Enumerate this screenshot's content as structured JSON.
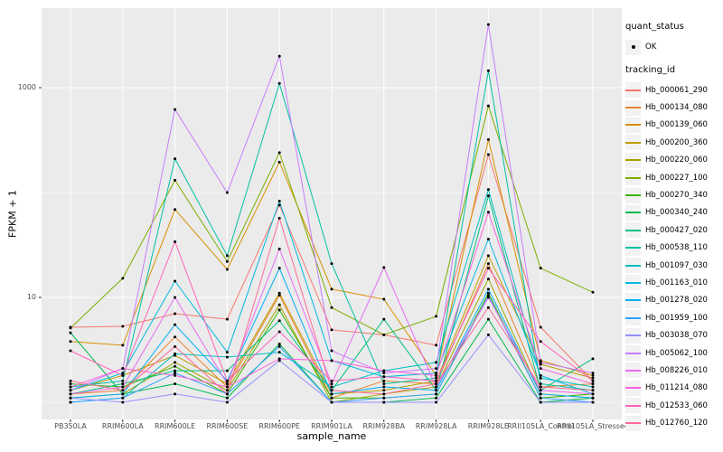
{
  "figure": {
    "y_axis_title": "FPKM + 1",
    "x_axis_title": "sample_name",
    "panel_bg": "#EBEBEB",
    "grid_color": "#FFFFFF",
    "axis_text_color": "#4D4D4D",
    "point_color": "#000000"
  },
  "legend": {
    "quant_status_title": "quant_status",
    "quant_status_items": [
      {
        "label": "OK",
        "marker": "point"
      }
    ],
    "tracking_id_title": "tracking_id"
  },
  "chart_data": {
    "type": "line",
    "title": "",
    "xlabel": "sample_name",
    "ylabel": "FPKM + 1",
    "y_scale": "log10",
    "ylim": [
      1,
      5000
    ],
    "grid": true,
    "legend_position": "right",
    "y_ticks": [
      {
        "label": "10",
        "value": 10
      },
      {
        "label": "1000",
        "value": 1000
      }
    ],
    "y_minor_values": [
      1,
      100
    ],
    "categories": [
      "PB350LA",
      "RRIM600LA",
      "RRIM600LE",
      "RRIM600SE",
      "RRIM600PE",
      "RRIM901LA",
      "RRIM928BA",
      "RRIM928LA",
      "RRIM928LE",
      "RRII105LA_Control",
      "RRII105LA_Stressed"
    ],
    "series": [
      {
        "name": "Hb_000061_290",
        "color": "#F8766D",
        "values": [
          5.2,
          5.3,
          7,
          6.2,
          76,
          4.9,
          4.4,
          3.5,
          230,
          5.2,
          1.6
        ]
      },
      {
        "name": "Hb_000134_080",
        "color": "#EA8331",
        "values": [
          1.2,
          1.3,
          4.2,
          1.4,
          10.5,
          1.1,
          1.6,
          1.5,
          21,
          1.4,
          1.5
        ]
      },
      {
        "name": "Hb_000139_060",
        "color": "#D89000",
        "values": [
          3.8,
          3.5,
          69,
          18.5,
          195,
          12,
          9.6,
          1.8,
          320,
          2.5,
          1.8
        ]
      },
      {
        "name": "Hb_000200_360",
        "color": "#C09B00",
        "values": [
          1.3,
          1.8,
          2.8,
          1.5,
          11,
          1.2,
          1.3,
          1.6,
          25,
          2.3,
          1.7
        ]
      },
      {
        "name": "Hb_000220_060",
        "color": "#A3A500",
        "values": [
          1.1,
          1.2,
          2.4,
          1.3,
          8.5,
          1.0,
          1.2,
          1.4,
          15,
          1.2,
          1.1
        ]
      },
      {
        "name": "Hb_000227_100",
        "color": "#7CAE00",
        "values": [
          5.1,
          15.2,
          131,
          22,
          240,
          8,
          4.4,
          6.6,
          670,
          19,
          11.2
        ]
      },
      {
        "name": "Hb_000270_340",
        "color": "#39B600",
        "values": [
          1.5,
          1.4,
          2.2,
          1.2,
          7.6,
          1.1,
          1.1,
          1.2,
          11,
          1.1,
          1.2
        ]
      },
      {
        "name": "Hb_000340_240",
        "color": "#00BB4E",
        "values": [
          4.6,
          1.2,
          1.5,
          1.1,
          3.6,
          1.0,
          1.0,
          1.1,
          6.2,
          1.0,
          1.1
        ]
      },
      {
        "name": "Hb_000427_020",
        "color": "#00BF7D",
        "values": [
          1.2,
          1.5,
          2.0,
          2.0,
          6.0,
          1.3,
          6.2,
          1.3,
          93,
          1.3,
          2.6
        ]
      },
      {
        "name": "Hb_000538_110",
        "color": "#00C1A3",
        "values": [
          1.4,
          1.6,
          210,
          25,
          1100,
          21,
          1.5,
          1.7,
          1450,
          1.5,
          1.3
        ]
      },
      {
        "name": "Hb_001097_030",
        "color": "#00BFC4",
        "values": [
          1.0,
          1.1,
          2.9,
          2.7,
          3.0,
          1.4,
          2.0,
          2.4,
          107,
          1.7,
          1.4
        ]
      },
      {
        "name": "Hb_001163_010",
        "color": "#00BAE0",
        "values": [
          1.3,
          1.9,
          14.3,
          3.0,
          83,
          2.5,
          1.75,
          1.9,
          36,
          1.8,
          1.2
        ]
      },
      {
        "name": "Hb_001278_020",
        "color": "#00B0F6",
        "values": [
          1.1,
          1.2,
          5.5,
          1.6,
          19,
          1.2,
          1.4,
          1.3,
          12,
          1.2,
          1.1
        ]
      },
      {
        "name": "Hb_001959_100",
        "color": "#35A2FF",
        "values": [
          1.0,
          1.1,
          1.9,
          1.2,
          3.4,
          1.0,
          1.1,
          1.2,
          10.5,
          1.1,
          1.0
        ]
      },
      {
        "name": "Hb_003038_070",
        "color": "#9590FF",
        "values": [
          1.1,
          1.0,
          1.2,
          1.0,
          2.5,
          1.0,
          1.0,
          1.0,
          4.4,
          1.0,
          1.0
        ]
      },
      {
        "name": "Hb_005062_100",
        "color": "#C77CFF",
        "values": [
          1.3,
          2.1,
          620,
          100,
          2000,
          3.1,
          1.9,
          2.1,
          4000,
          2.4,
          1.9
        ]
      },
      {
        "name": "Hb_008226_010",
        "color": "#E76BF3",
        "values": [
          1.2,
          1.4,
          10,
          1.5,
          29,
          1.5,
          19.3,
          1.4,
          10,
          1.3,
          1.2
        ]
      },
      {
        "name": "Hb_011214_080",
        "color": "#FA62DB",
        "values": [
          1.4,
          2.1,
          1.8,
          1.4,
          2.6,
          2.5,
          2.0,
          1.8,
          65,
          2.1,
          1.5
        ]
      },
      {
        "name": "Hb_012533_060",
        "color": "#FF62BC",
        "values": [
          3.1,
          1.8,
          34,
          1.6,
          4.7,
          1.6,
          1.75,
          1.6,
          19,
          3.8,
          1.6
        ]
      },
      {
        "name": "Hb_012760_120",
        "color": "#FF6A98",
        "values": [
          1.6,
          1.3,
          3.4,
          1.2,
          57,
          1.3,
          1.2,
          1.5,
          8,
          1.4,
          1.3
        ]
      }
    ]
  }
}
